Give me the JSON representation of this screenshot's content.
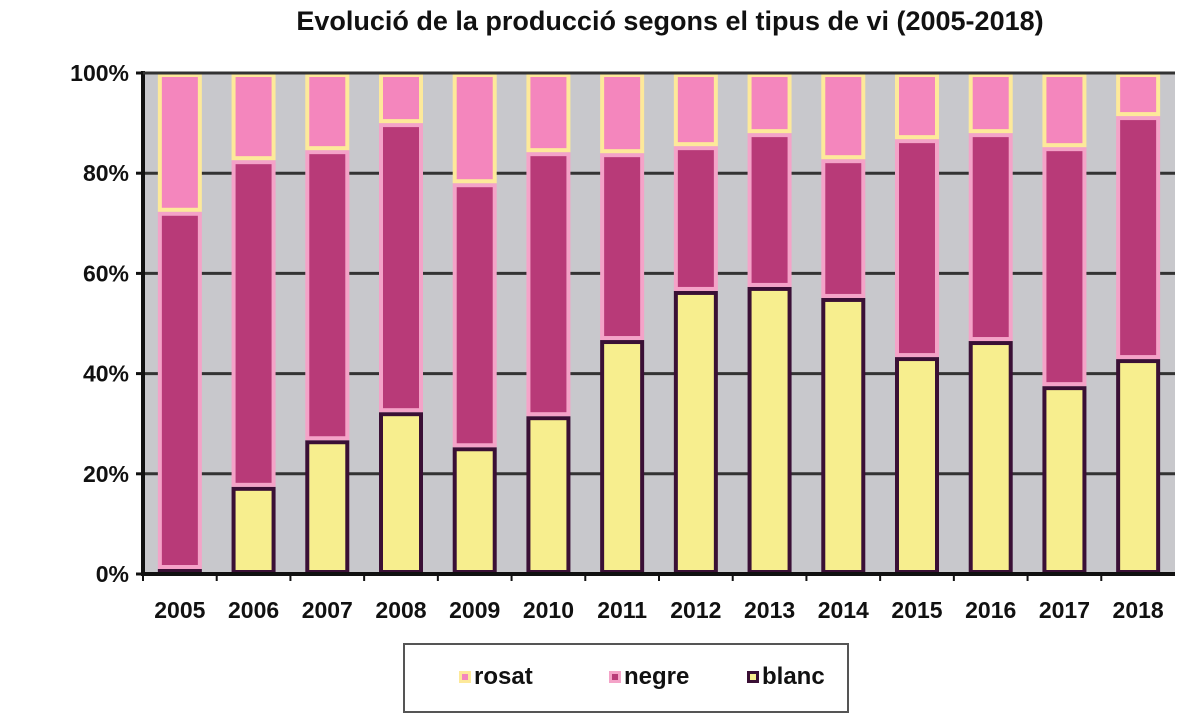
{
  "chart_data": {
    "type": "bar",
    "stacked": true,
    "title": "Evolució de la producció segons el tipus de vi (2005-2018)",
    "categories": [
      "2005",
      "2006",
      "2007",
      "2008",
      "2009",
      "2010",
      "2011",
      "2012",
      "2013",
      "2014",
      "2015",
      "2016",
      "2017",
      "2018"
    ],
    "series": [
      {
        "name": "blanc",
        "color": "#f7ee8e",
        "border": "#3a1035",
        "values": [
          1,
          17.4,
          26.7,
          32.3,
          25.3,
          31.5,
          46.7,
          56.5,
          57.3,
          55.1,
          43.3,
          46.5,
          37.5,
          42.9
        ]
      },
      {
        "name": "negre",
        "color": "#b83a78",
        "border": "#f4a3c8",
        "values": [
          71.3,
          65.2,
          57.9,
          57.7,
          52.7,
          52.7,
          37.3,
          28.9,
          30.7,
          27.7,
          43.5,
          41.5,
          47.7,
          48.5
        ]
      },
      {
        "name": "rosat",
        "color": "#f486bd",
        "border": "#fde99a",
        "values": [
          27.7,
          17.4,
          15.4,
          10,
          22,
          15.8,
          16,
          14.6,
          12,
          17.2,
          13.2,
          12,
          14.8,
          8.6
        ]
      }
    ],
    "ylim": [
      0,
      100
    ],
    "yticks": [
      "0%",
      "20%",
      "40%",
      "60%",
      "80%",
      "100%"
    ],
    "grid": true,
    "plot_background": "#c8c8cc",
    "legend_position": "bottom",
    "legend": [
      "rosat",
      "negre",
      "blanc"
    ]
  }
}
